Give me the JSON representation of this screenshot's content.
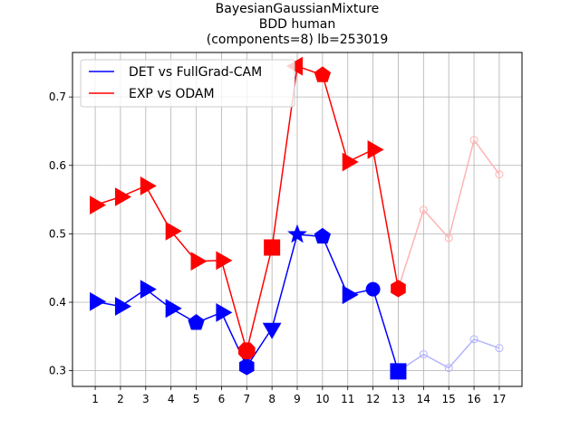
{
  "chart_data": {
    "type": "line",
    "title_lines": [
      "BayesianGaussianMixture",
      "BDD human",
      "(components=8) lb=253019"
    ],
    "xlabel": "",
    "ylabel": "",
    "x": [
      1,
      2,
      3,
      4,
      5,
      6,
      7,
      8,
      9,
      10,
      11,
      12,
      13,
      14,
      15,
      16,
      17
    ],
    "xlim": [
      0.1,
      17.9
    ],
    "ylim": [
      0.277,
      0.765
    ],
    "yticks": [
      0.3,
      0.4,
      0.5,
      0.6,
      0.7
    ],
    "ytick_labels": [
      "0.3",
      "0.4",
      "0.5",
      "0.6",
      "0.7"
    ],
    "xtick_labels": [
      "1",
      "2",
      "3",
      "4",
      "5",
      "6",
      "7",
      "8",
      "9",
      "10",
      "11",
      "12",
      "13",
      "14",
      "15",
      "16",
      "17"
    ],
    "grid": true,
    "legend_position": "top-left",
    "series": [
      {
        "name": "DET vs FullGrad-CAM",
        "color": "#0000ff",
        "faded_color": "#b3b3ff",
        "values": [
          0.401,
          0.394,
          0.419,
          0.391,
          0.37,
          0.385,
          0.306,
          0.362,
          0.499,
          0.496,
          0.411,
          0.419,
          0.299,
          0.324,
          0.304,
          0.346,
          0.333
        ],
        "markers": [
          "triangle-right",
          "triangle-right",
          "triangle-right",
          "triangle-right",
          "pentagon",
          "triangle-right",
          "hexagon",
          "triangle-down",
          "star",
          "pentagon",
          "triangle-right",
          "circle",
          "square",
          "circle-open",
          "circle-open",
          "circle-open",
          "circle-open"
        ],
        "highlight_count": 13
      },
      {
        "name": "EXP vs ODAM",
        "color": "#ff0000",
        "faded_color": "#ffb3b3",
        "values": [
          0.542,
          0.554,
          0.57,
          0.504,
          0.46,
          0.461,
          0.329,
          0.48,
          0.745,
          0.732,
          0.605,
          0.623,
          0.42,
          0.535,
          0.494,
          0.637,
          0.587
        ],
        "markers": [
          "triangle-right",
          "triangle-right",
          "triangle-right",
          "triangle-right",
          "triangle-right",
          "triangle-right",
          "octagon",
          "square",
          "triangle-left",
          "pentagon",
          "triangle-right",
          "triangle-right",
          "hexagon",
          "circle-open",
          "circle-open",
          "circle-open",
          "circle-open"
        ],
        "highlight_count": 13
      }
    ]
  }
}
